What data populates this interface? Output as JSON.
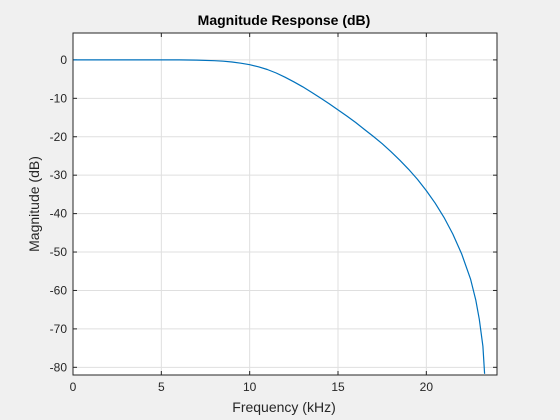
{
  "chart_data": {
    "type": "line",
    "title": "Magnitude Response (dB)",
    "xlabel": "Frequency (kHz)",
    "ylabel": "Magnitude (dB)",
    "xlim": [
      0,
      24
    ],
    "ylim": [
      -82,
      7
    ],
    "xticks": [
      0,
      5,
      10,
      15,
      20
    ],
    "yticks": [
      0,
      -10,
      -20,
      -30,
      -40,
      -50,
      -60,
      -70,
      -80
    ],
    "grid": true,
    "legend": "none",
    "series": [
      {
        "color": "#0072bd",
        "x": [
          0,
          2,
          4,
          6,
          7,
          8,
          8.5,
          9,
          9.5,
          10,
          10.5,
          11,
          11.5,
          12,
          12.5,
          13,
          13.5,
          14,
          14.5,
          15,
          15.5,
          16,
          16.5,
          17,
          17.5,
          18,
          18.5,
          19,
          19.5,
          20,
          20.5,
          21,
          21.5,
          22,
          22.5,
          22.8,
          23,
          23.2,
          23.3
        ],
        "y": [
          0,
          0,
          0,
          0,
          -0.05,
          -0.2,
          -0.35,
          -0.55,
          -0.85,
          -1.25,
          -1.8,
          -2.5,
          -3.4,
          -4.5,
          -5.7,
          -7.0,
          -8.4,
          -9.9,
          -11.4,
          -13.0,
          -14.6,
          -16.3,
          -18.1,
          -19.9,
          -21.8,
          -23.9,
          -26.1,
          -28.5,
          -31.1,
          -34.0,
          -37.3,
          -41.0,
          -45.3,
          -50.5,
          -57.0,
          -62.5,
          -67.5,
          -74.5,
          -81.7
        ]
      }
    ]
  }
}
